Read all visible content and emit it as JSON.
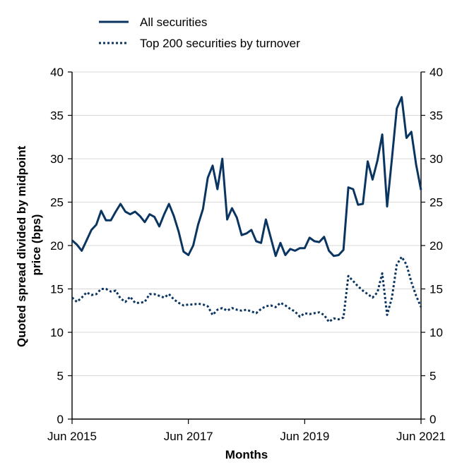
{
  "chart_data": {
    "type": "line",
    "title": "",
    "xlabel": "Months",
    "ylabel": "Quoted spread divided by midpoint price (bps)",
    "ylabel_lines": [
      "Quoted spread divided by midpoint",
      "price (bps)"
    ],
    "ylim": [
      0,
      40
    ],
    "yticks": [
      0,
      5,
      10,
      15,
      20,
      25,
      30,
      35,
      40
    ],
    "xticks": [
      {
        "x": 0,
        "label": "Jun 2015"
      },
      {
        "x": 24,
        "label": "Jun 2017"
      },
      {
        "x": 48,
        "label": "Jun 2019"
      },
      {
        "x": 72,
        "label": "Jun 2021"
      }
    ],
    "xlim": [
      0,
      72
    ],
    "grid": "horizontal",
    "legend_position": "top-left",
    "secondary_y_axis": "mirrored",
    "line_color": "#0a3561",
    "series": [
      {
        "name": "All securities",
        "style": "solid",
        "values": [
          20.6,
          20.1,
          19.4,
          20.6,
          21.8,
          22.4,
          24.0,
          22.9,
          22.9,
          23.9,
          24.8,
          23.9,
          23.6,
          23.9,
          23.4,
          22.7,
          23.6,
          23.3,
          22.2,
          23.6,
          24.8,
          23.4,
          21.6,
          19.3,
          18.9,
          20.0,
          22.4,
          24.2,
          27.8,
          29.2,
          26.5,
          30.0,
          23.0,
          24.3,
          23.2,
          21.2,
          21.4,
          21.8,
          20.5,
          20.3,
          23.0,
          20.9,
          18.8,
          20.3,
          18.9,
          19.6,
          19.4,
          19.7,
          19.7,
          20.9,
          20.5,
          20.4,
          21.0,
          19.4,
          18.8,
          18.9,
          19.5,
          26.7,
          26.5,
          24.7,
          24.8,
          29.7,
          27.6,
          29.8,
          32.8,
          24.5,
          30.0,
          35.8,
          37.1,
          32.4,
          33.1,
          29.3,
          26.4
        ]
      },
      {
        "name": "Top 200 securities by turnover",
        "style": "dotted",
        "values": [
          14.0,
          13.5,
          14.0,
          14.6,
          14.3,
          14.4,
          15.0,
          15.0,
          14.7,
          14.8,
          13.9,
          13.5,
          14.1,
          13.4,
          13.4,
          13.5,
          14.4,
          14.4,
          14.2,
          14.0,
          14.4,
          13.8,
          13.4,
          13.1,
          13.2,
          13.2,
          13.3,
          13.2,
          13.0,
          12.0,
          12.6,
          12.8,
          12.5,
          12.8,
          12.6,
          12.5,
          12.6,
          12.4,
          12.2,
          12.7,
          13.0,
          13.1,
          12.9,
          13.4,
          13.1,
          12.7,
          12.4,
          11.8,
          12.2,
          12.1,
          12.2,
          12.3,
          12.0,
          11.2,
          11.6,
          11.5,
          11.7,
          16.5,
          15.9,
          15.3,
          14.8,
          14.4,
          14.0,
          14.6,
          16.8,
          12.0,
          14.0,
          17.8,
          18.7,
          17.8,
          15.8,
          14.2,
          12.9
        ]
      }
    ]
  }
}
